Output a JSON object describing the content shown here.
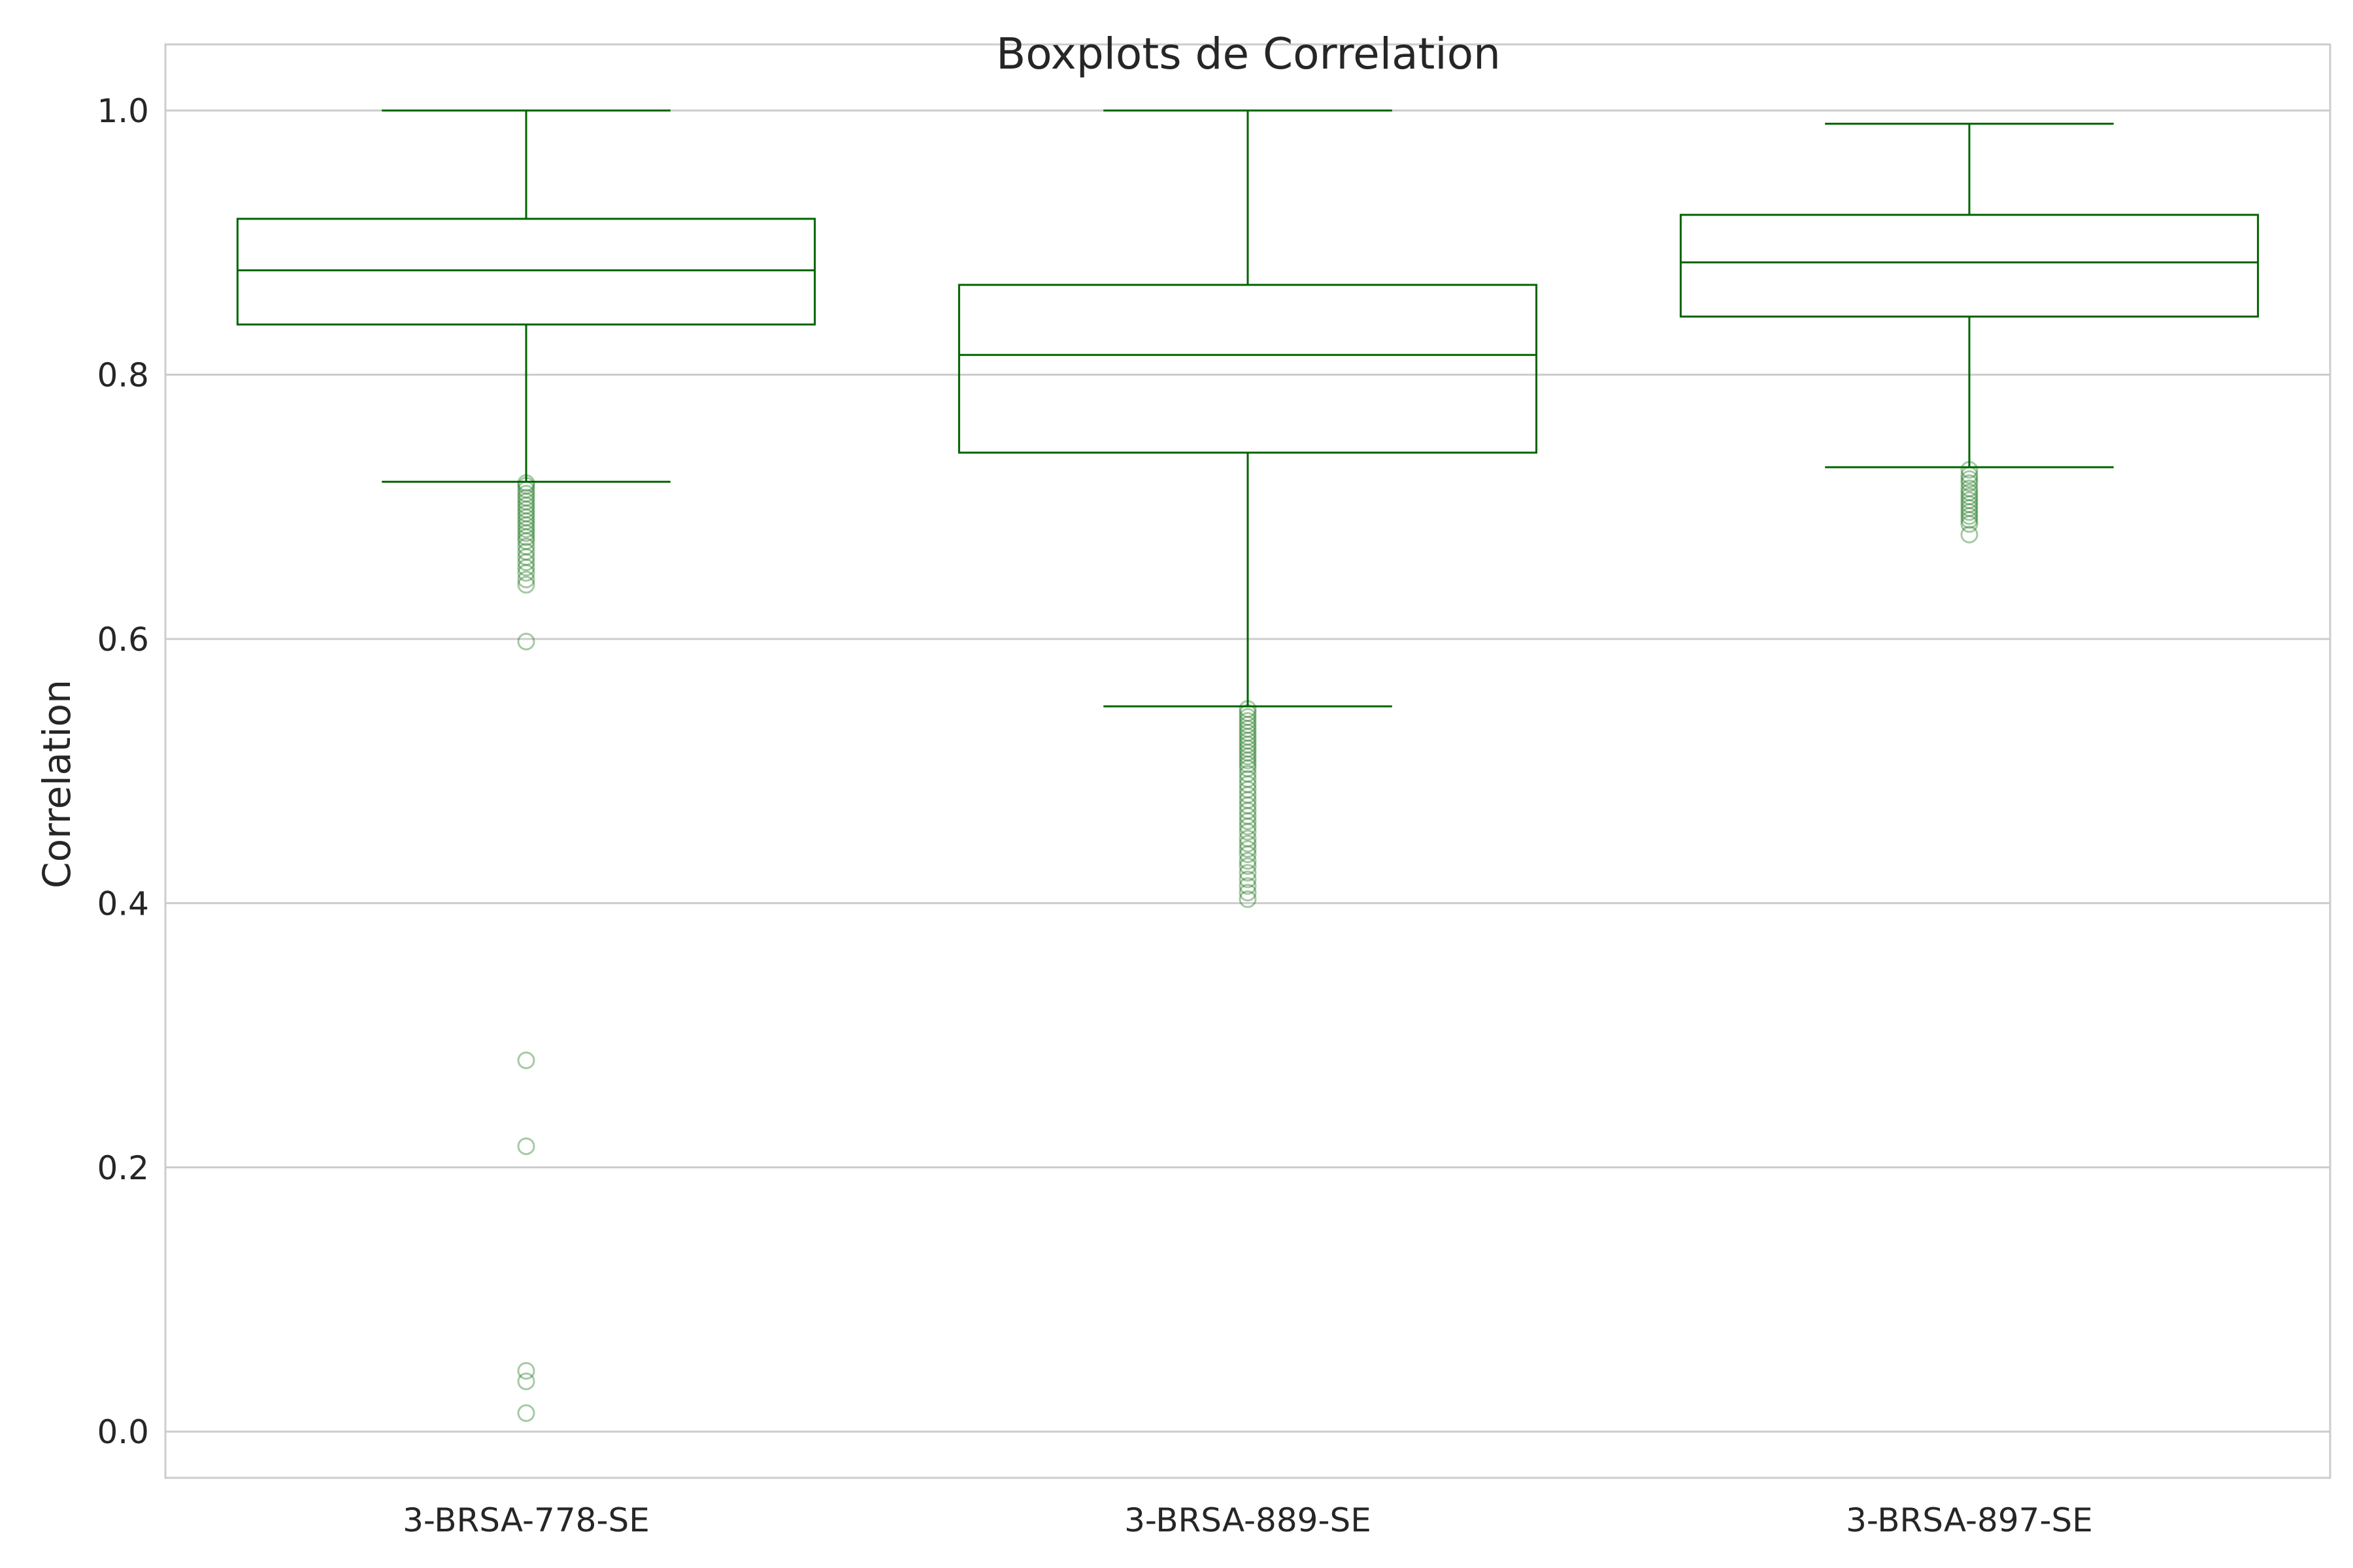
{
  "chart_data": {
    "type": "boxplot",
    "title": "Boxplots de Correlation",
    "xlabel": "",
    "ylabel": "Correlation",
    "ylim": [
      -0.035,
      1.05
    ],
    "yticks": [
      0.0,
      0.2,
      0.4,
      0.6,
      0.8,
      1.0
    ],
    "ytick_labels": [
      "0.0",
      "0.2",
      "0.4",
      "0.6",
      "0.8",
      "1.0"
    ],
    "grid": "horizontal",
    "colors": {
      "box": "#006400",
      "grid": "#cccccc",
      "spine": "#cccccc",
      "background": "#ffffff"
    },
    "categories": [
      "3-BRSA-778-SE",
      "3-BRSA-889-SE",
      "3-BRSA-897-SE"
    ],
    "series": [
      {
        "whisker_low": 0.719,
        "q1": 0.838,
        "median": 0.879,
        "q3": 0.918,
        "whisker_high": 1.0,
        "outliers": [
          0.718,
          0.716,
          0.713,
          0.71,
          0.707,
          0.704,
          0.701,
          0.698,
          0.695,
          0.692,
          0.689,
          0.686,
          0.683,
          0.68,
          0.677,
          0.674,
          0.67,
          0.666,
          0.662,
          0.658,
          0.654,
          0.65,
          0.645,
          0.641,
          0.598,
          0.281,
          0.216,
          0.046,
          0.038,
          0.014
        ]
      },
      {
        "whisker_low": 0.549,
        "q1": 0.741,
        "median": 0.815,
        "q3": 0.868,
        "whisker_high": 1.0,
        "outliers": [
          0.547,
          0.544,
          0.541,
          0.538,
          0.535,
          0.532,
          0.529,
          0.526,
          0.523,
          0.52,
          0.517,
          0.514,
          0.511,
          0.508,
          0.505,
          0.502,
          0.498,
          0.494,
          0.49,
          0.486,
          0.482,
          0.478,
          0.474,
          0.47,
          0.466,
          0.462,
          0.458,
          0.454,
          0.449,
          0.445,
          0.441,
          0.437,
          0.432,
          0.428,
          0.423,
          0.418,
          0.413,
          0.408,
          0.403
        ]
      },
      {
        "whisker_low": 0.73,
        "q1": 0.844,
        "median": 0.885,
        "q3": 0.921,
        "whisker_high": 0.99,
        "outliers": [
          0.728,
          0.724,
          0.721,
          0.718,
          0.714,
          0.711,
          0.708,
          0.705,
          0.702,
          0.699,
          0.696,
          0.693,
          0.69,
          0.687,
          0.679
        ]
      }
    ]
  }
}
